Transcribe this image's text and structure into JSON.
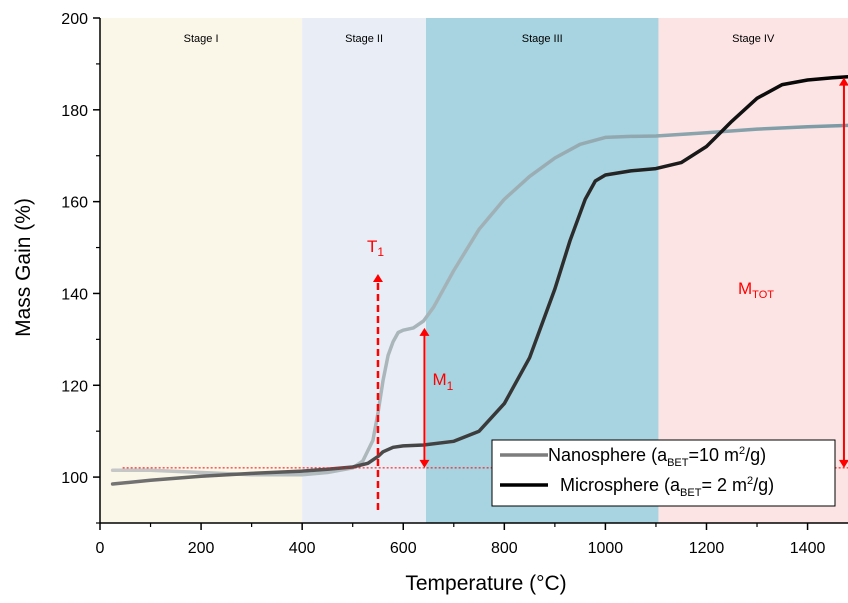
{
  "chart_data": {
    "type": "line",
    "title": "",
    "xlabel": "Temperature (°C)",
    "ylabel": "Mass Gain (%)",
    "xlim": [
      0,
      1480
    ],
    "ylim": [
      90,
      200
    ],
    "x_ticks": [
      0,
      200,
      400,
      600,
      800,
      1000,
      1200,
      1400
    ],
    "y_ticks": [
      100,
      120,
      140,
      160,
      180,
      200
    ],
    "stages": [
      {
        "label": "Stage I",
        "x_from": 0,
        "x_to": 400,
        "color": "#faf6e8"
      },
      {
        "label": "Stage II",
        "x_from": 400,
        "x_to": 645,
        "color": "#e9eef6"
      },
      {
        "label": "Stage III",
        "x_from": 645,
        "x_to": 1105,
        "color": "#a7d4e0"
      },
      {
        "label": "Stage IV",
        "x_from": 1105,
        "x_to": 1480,
        "color": "#fde4e4"
      }
    ],
    "series": [
      {
        "name": "Nanosphere",
        "legend_pre": "Nanosphere (a",
        "legend_sub": "BET",
        "legend_mid": "=10 m",
        "legend_sup": "2",
        "legend_post": "/g)",
        "color_start": "#c8c8c8",
        "color_end": "#7a9aa5",
        "x": [
          25,
          100,
          200,
          300,
          400,
          450,
          500,
          520,
          540,
          550,
          560,
          570,
          580,
          590,
          600,
          620,
          640,
          660,
          700,
          750,
          800,
          850,
          900,
          950,
          1000,
          1050,
          1100,
          1200,
          1300,
          1400,
          1480
        ],
        "y": [
          101.5,
          101.5,
          101.0,
          100.5,
          100.5,
          101.0,
          102.0,
          103.5,
          108.0,
          114.0,
          121.0,
          126.5,
          129.5,
          131.5,
          132.0,
          132.5,
          134.0,
          137.0,
          145.0,
          154.0,
          160.5,
          165.5,
          169.5,
          172.5,
          174.0,
          174.2,
          174.3,
          175.0,
          175.8,
          176.3,
          176.6
        ]
      },
      {
        "name": "Microsphere",
        "legend_pre": "Microsphere (a",
        "legend_sub": "BET",
        "legend_mid": "= 2 m",
        "legend_sup": "2",
        "legend_post": "/g)",
        "color_start": "#777777",
        "color_end": "#000000",
        "x": [
          25,
          100,
          200,
          300,
          400,
          450,
          500,
          530,
          550,
          560,
          580,
          600,
          640,
          700,
          750,
          800,
          850,
          900,
          930,
          960,
          980,
          1000,
          1050,
          1100,
          1150,
          1200,
          1250,
          1300,
          1350,
          1400,
          1450,
          1480
        ],
        "y": [
          98.5,
          99.3,
          100.2,
          100.8,
          101.3,
          101.7,
          102.2,
          103.0,
          104.5,
          105.5,
          106.5,
          106.8,
          107.0,
          107.8,
          110.0,
          116.0,
          126.0,
          141.0,
          151.5,
          160.5,
          164.5,
          165.8,
          166.7,
          167.2,
          168.5,
          172.0,
          177.5,
          182.5,
          185.5,
          186.5,
          187.0,
          187.2
        ]
      }
    ],
    "annotations": {
      "t1": {
        "label": "T",
        "sub": "1",
        "x": 550
      },
      "m1": {
        "label": "M",
        "sub": "1",
        "x": 640,
        "y_from": 102,
        "y_to": 132.5
      },
      "mtot": {
        "label": "M",
        "sub": "TOT",
        "x": 1472,
        "y_from": 102,
        "y_to": 187
      },
      "baseline_y": 102,
      "color": "#ff0000"
    },
    "grid": false,
    "legend_position": "bottom-right"
  }
}
